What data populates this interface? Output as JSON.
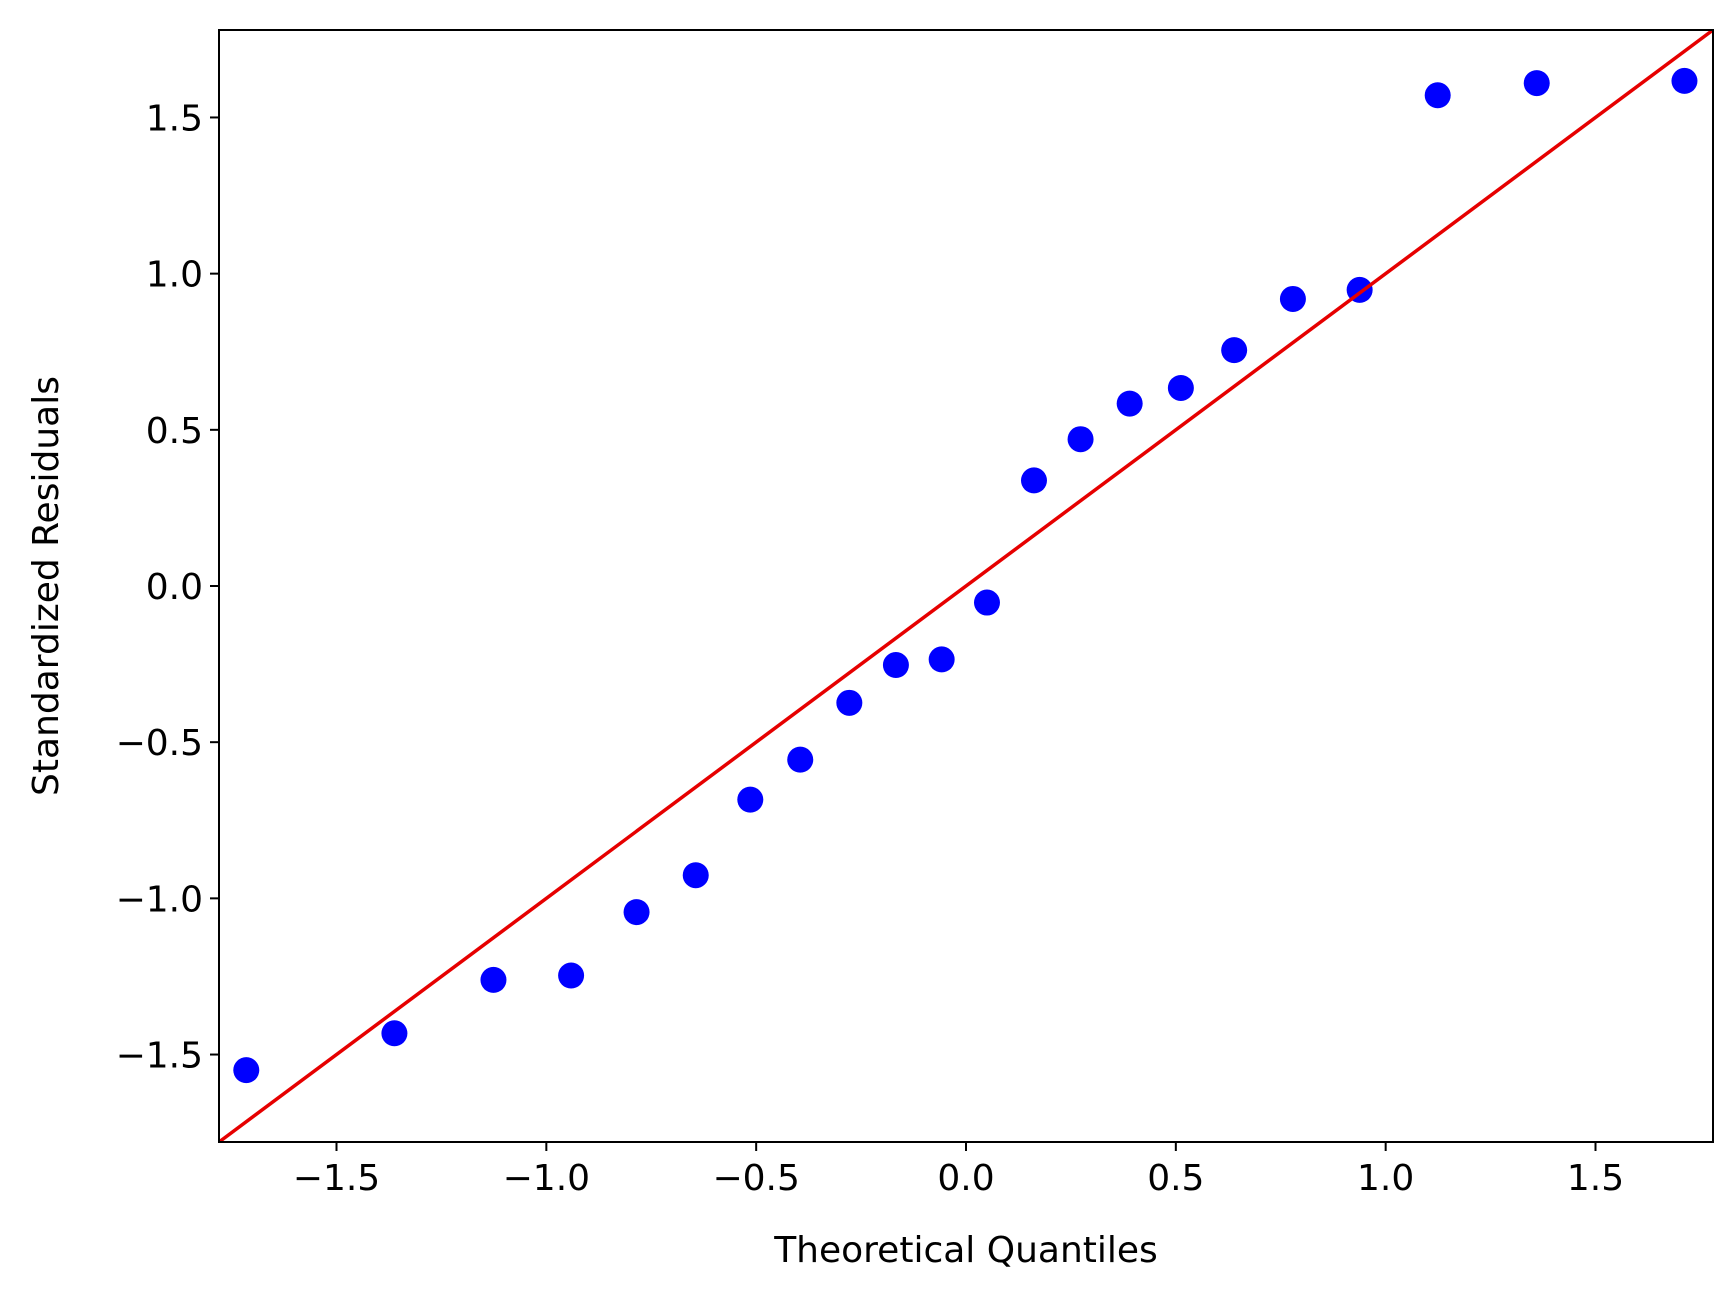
{
  "chart_data": {
    "type": "scatter",
    "x_label": "Theoretical Quantiles",
    "y_label": "Standardized Residuals",
    "x": [
      -1.715,
      -1.362,
      -1.126,
      -0.941,
      -0.785,
      -0.644,
      -0.514,
      -0.395,
      -0.278,
      -0.167,
      -0.058,
      0.05,
      0.162,
      0.273,
      0.39,
      0.512,
      0.639,
      0.779,
      0.938,
      1.124,
      1.36,
      1.712
    ],
    "values": [
      -1.55,
      -1.432,
      -1.261,
      -1.247,
      -1.044,
      -0.926,
      -0.684,
      -0.556,
      -0.374,
      -0.253,
      -0.235,
      -0.053,
      0.338,
      0.47,
      0.584,
      0.634,
      0.755,
      0.919,
      0.948,
      1.571,
      1.61,
      1.617
    ],
    "color": "#0000ff",
    "reference_line": {
      "x": [
        -1.78,
        1.78
      ],
      "y": [
        -1.78,
        1.78
      ],
      "color": "#e60000"
    },
    "xlim": [
      -1.78,
      1.78
    ],
    "ylim": [
      -1.78,
      1.78
    ],
    "xticks": [
      {
        "value": -1.5,
        "label": "−1.5"
      },
      {
        "value": -1.0,
        "label": "−1.0"
      },
      {
        "value": -0.5,
        "label": "−0.5"
      },
      {
        "value": 0,
        "label": "0.0"
      },
      0.5,
      {
        "value": 1.0,
        "label": "1.0"
      },
      1.5
    ],
    "yticks": [
      {
        "value": -1.5,
        "label": "−1.5"
      },
      {
        "value": -1.0,
        "label": "−1.0"
      },
      {
        "value": -0.5,
        "label": "−0.5"
      },
      {
        "value": 0,
        "label": "0.0"
      },
      0.5,
      {
        "value": 1.0,
        "label": "1.0"
      },
      1.5
    ]
  }
}
